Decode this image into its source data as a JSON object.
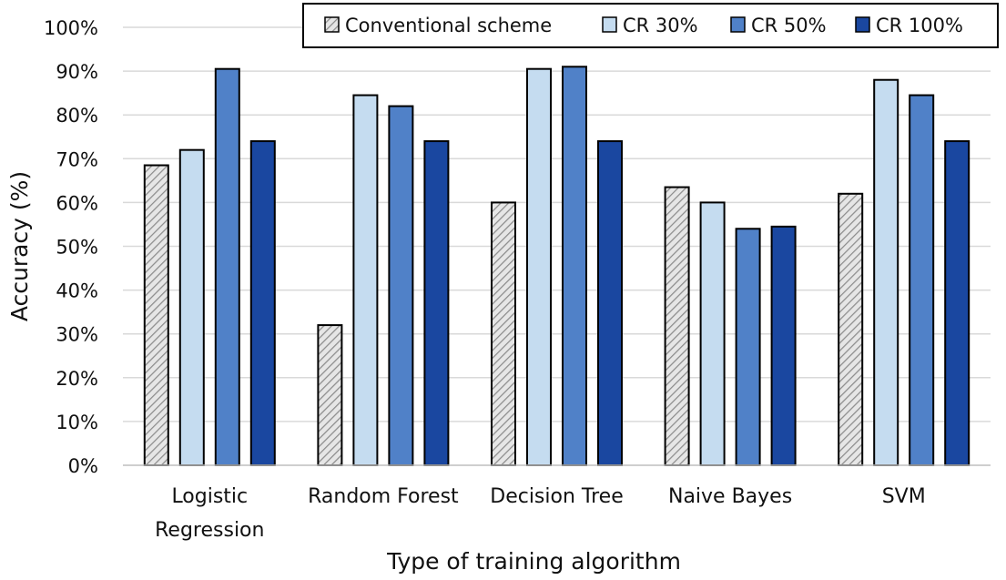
{
  "chart_data": {
    "type": "bar",
    "title": "",
    "xlabel": "Type of training algorithm",
    "ylabel": "Accuracy (%)",
    "ylim": [
      0,
      100
    ],
    "ytick_step": 10,
    "ytick_suffix": "%",
    "grid": "horizontal",
    "legend_position": "top-right",
    "categories": [
      [
        "Logistic",
        "Regression"
      ],
      [
        "Random Forest"
      ],
      [
        "Decision Tree"
      ],
      [
        "Naive Bayes"
      ],
      [
        "SVM"
      ]
    ],
    "series": [
      {
        "name": "Conventional scheme",
        "color": "#d9d9d9",
        "pattern": "hatch",
        "values": [
          68.5,
          32,
          60,
          63.5,
          62
        ]
      },
      {
        "name": "CR 30%",
        "color": "#c5dcf0",
        "values": [
          72,
          84.5,
          90.5,
          60,
          88
        ]
      },
      {
        "name": "CR 50%",
        "color": "#5081c8",
        "values": [
          90.5,
          82,
          91,
          54,
          84.5
        ]
      },
      {
        "name": "CR 100%",
        "color": "#1a47a0",
        "values": [
          74,
          74,
          74,
          54.5,
          74
        ]
      }
    ]
  }
}
